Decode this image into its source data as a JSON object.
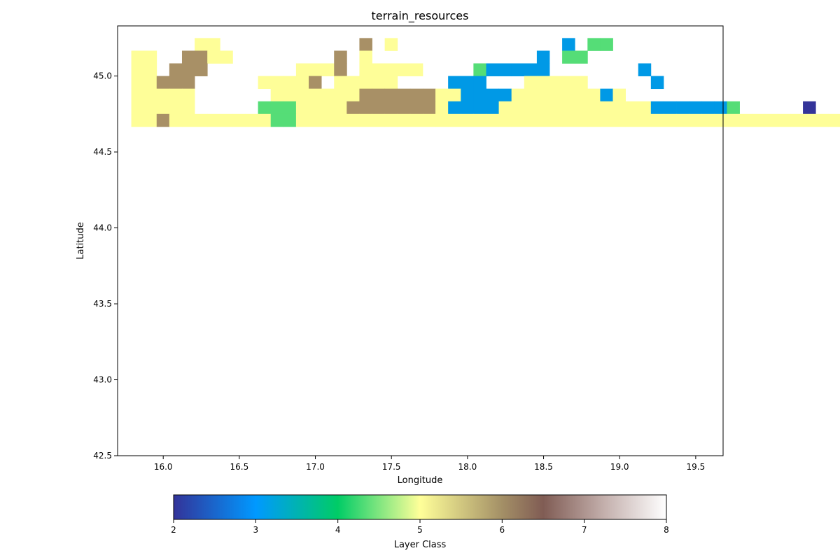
{
  "chart_data": {
    "type": "heatmap",
    "title": "terrain_resources",
    "xlabel": "Longitude",
    "ylabel": "Latitude",
    "xlim": [
      15.7,
      19.68
    ],
    "ylim": [
      42.5,
      45.33
    ],
    "x_ticks": [
      "16.0",
      "16.5",
      "17.0",
      "17.5",
      "18.0",
      "18.5",
      "19.0",
      "19.5"
    ],
    "y_ticks": [
      "42.5",
      "43.0",
      "43.5",
      "44.0",
      "44.5",
      "45.0"
    ],
    "grid": false,
    "colormap": "terrain",
    "colorbar": {
      "label": "Layer Class",
      "orientation": "horizontal",
      "placement": "bottom",
      "range": [
        2,
        8
      ],
      "ticks": [
        "2",
        "3",
        "4",
        "5",
        "6",
        "7",
        "8"
      ]
    },
    "cell_size_deg": 0.0833,
    "grid_origin": {
      "lon": 15.79,
      "lat": 45.25
    },
    "class_colors": {
      "2": "#333399",
      "3": "#0099e6",
      "4": "#55dd77",
      "5": "#fefe98",
      "6": "#a89066",
      "7": "#a89491"
    },
    "rows": [
      ".....55...........6 5.............3 44..........................",
      "55..6655........6 5.............3 44..........................",
      "55.666.......5556.55555....433333.......3.....................",
      "55666.....55556.55555....333...55555.....3..................",
      "55555......5555555666666553333555555535......................",
      "55555.....44455556666666533335555555555553333334.....2..",
      "55655555555445555555555555555555555555555555555555555555555"
    ]
  }
}
